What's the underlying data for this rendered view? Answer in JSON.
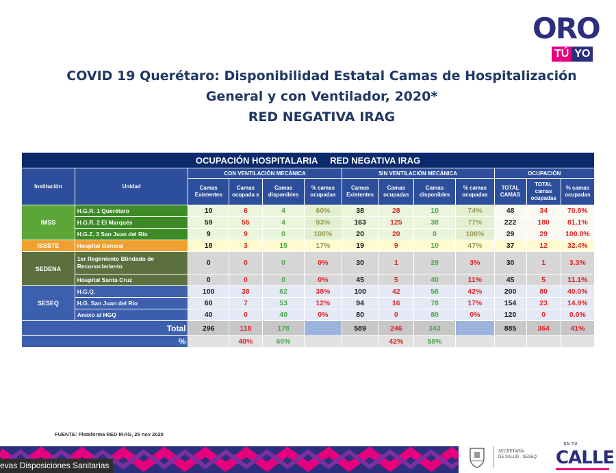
{
  "logo": {
    "main": "ORO",
    "tu": "TÚ",
    "yo": "YO"
  },
  "title": {
    "line1": "COVID 19 Querétaro: Disponibilidad Estatal Camas de Hospitalización",
    "line2": "General y con Ventilador, 2020*",
    "line3": "RED NEGATIVA IRAG"
  },
  "table": {
    "banner1": "OCUPACIÓN HOSPITALARIA",
    "banner2": "RED NEGATIVA IRAG",
    "col_institucion": "Institución",
    "col_unidad": "Unidad",
    "group_con": "CON VENTILACIÓN MECÁNICA",
    "group_sin": "SIN VENTILACIÓN MECÁNICA",
    "group_ocup": "OCUPACIÓN",
    "sub_con": [
      "Camas Existentes",
      "Camas ocupada s",
      "Camas disponibles",
      "% camas ocupadas"
    ],
    "sub_sin": [
      "Camas Existentes",
      "Camas ocupadas",
      "Camas disponibles",
      "% camas ocupadas"
    ],
    "sub_ocup": [
      "TOTAL CAMAS",
      "TOTAL camas ocupadas",
      "% camas ocupadas"
    ],
    "inst": {
      "imss": "IMSS",
      "issste": "ISSSTE",
      "sedena": "SEDENA",
      "seseq": "SESEQ"
    },
    "rows": [
      {
        "unit": "H.G.R. 1 Querétaro",
        "v": [
          "10",
          "6",
          "4",
          "60%",
          "38",
          "28",
          "10",
          "74%",
          "48",
          "34",
          "70.8%"
        ]
      },
      {
        "unit": "H.G.R. 2 El Marqués",
        "v": [
          "59",
          "55",
          "4",
          "93%",
          "163",
          "125",
          "38",
          "77%",
          "222",
          "180",
          "81.1%"
        ]
      },
      {
        "unit": "H.G.Z. 3 San Juan del Río",
        "v": [
          "9",
          "9",
          "0",
          "100%",
          "20",
          "20",
          "0",
          "100%",
          "29",
          "29",
          "100.0%"
        ]
      },
      {
        "unit": "Hospital General",
        "v": [
          "18",
          "3",
          "15",
          "17%",
          "19",
          "9",
          "10",
          "47%",
          "37",
          "12",
          "32.4%"
        ]
      },
      {
        "unit": "1er Regimiento Blindado de Reconocimiento",
        "v": [
          "0",
          "0",
          "0",
          "0%",
          "30",
          "1",
          "29",
          "3%",
          "30",
          "1",
          "3.3%"
        ]
      },
      {
        "unit": "Hospital Santa Cruz",
        "v": [
          "0",
          "0",
          "0",
          "0%",
          "45",
          "5",
          "40",
          "11%",
          "45",
          "5",
          "11.1%"
        ]
      },
      {
        "unit": "H.G.Q.",
        "v": [
          "100",
          "38",
          "62",
          "38%",
          "100",
          "42",
          "58",
          "42%",
          "200",
          "80",
          "40.0%"
        ]
      },
      {
        "unit": "H.G. San Juan del Río",
        "v": [
          "60",
          "7",
          "53",
          "12%",
          "94",
          "16",
          "78",
          "17%",
          "154",
          "23",
          "14.9%"
        ]
      },
      {
        "unit": "Anexo al HGQ",
        "v": [
          "40",
          "0",
          "40",
          "0%",
          "80",
          "0",
          "80",
          "0%",
          "120",
          "0",
          "0.0%"
        ]
      }
    ],
    "total_label": "Total",
    "total": [
      "296",
      "118",
      "178",
      "589",
      "246",
      "343",
      "885",
      "364",
      "41%"
    ],
    "pct_label": "%",
    "pct": [
      "40%",
      "60%",
      "42%",
      "58%"
    ]
  },
  "fuente": "FUENTE: Plataforma RED IRAG, 25 nov 2020",
  "ticker": "evas Disposiciones Sanitarias",
  "secretaria": {
    "line1": "SECRETARÍA",
    "line2": "DE SALUD · SESEQ"
  },
  "calle": {
    "top": "EN TU",
    "word": "CALLE"
  }
}
